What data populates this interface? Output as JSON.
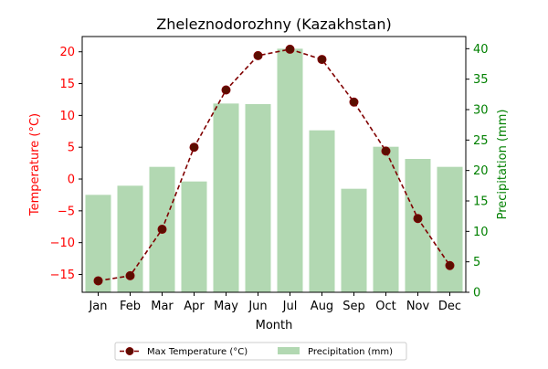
{
  "chart_data": {
    "type": "bar",
    "title": "Zheleznodorozhny (Kazakhstan)",
    "xlabel": "Month",
    "categories": [
      "Jan",
      "Feb",
      "Mar",
      "Apr",
      "May",
      "Jun",
      "Jul",
      "Aug",
      "Sep",
      "Oct",
      "Nov",
      "Dec"
    ],
    "series": [
      {
        "name": "Max Temperature (°C)",
        "type": "line",
        "axis": "left",
        "color": "#800000",
        "values": [
          -16.0,
          -15.2,
          -7.9,
          5.0,
          14.0,
          19.4,
          20.4,
          18.8,
          12.1,
          4.4,
          -6.2,
          -13.6
        ]
      },
      {
        "name": "Precipitation (mm)",
        "type": "bar",
        "axis": "right",
        "color": "#b2d8b2",
        "values": [
          16.0,
          17.5,
          20.6,
          18.2,
          31.0,
          30.9,
          40.0,
          26.6,
          17.0,
          23.9,
          21.9,
          20.6
        ]
      }
    ],
    "y_left": {
      "label": "Temperature (°C)",
      "color": "#ff0000",
      "range": [
        -17.8,
        22.4
      ],
      "ticks": [
        -15,
        -10,
        -5,
        0,
        5,
        10,
        15,
        20
      ]
    },
    "y_right": {
      "label": "Precipitation (mm)",
      "color": "#008000",
      "range": [
        0,
        42
      ],
      "ticks": [
        0,
        5,
        10,
        15,
        20,
        25,
        30,
        35,
        40
      ]
    },
    "grid": false,
    "legend": "bottom-center"
  }
}
